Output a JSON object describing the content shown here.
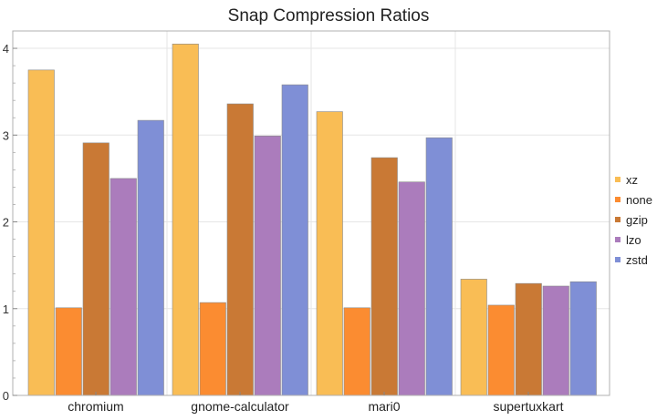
{
  "chart_data": {
    "type": "bar",
    "title": "Snap Compression Ratios",
    "xlabel": "",
    "ylabel": "",
    "categories": [
      "chromium",
      "gnome-calculator",
      "mari0",
      "supertuxkart"
    ],
    "series": [
      {
        "name": "xz",
        "color": "#f9bd55",
        "values": [
          3.75,
          4.05,
          3.27,
          1.34
        ]
      },
      {
        "name": "none",
        "color": "#fb8c31",
        "values": [
          1.01,
          1.07,
          1.01,
          1.04
        ]
      },
      {
        "name": "gzip",
        "color": "#c97935",
        "values": [
          2.91,
          3.36,
          2.74,
          1.29
        ]
      },
      {
        "name": "lzo",
        "color": "#ab7cbc",
        "values": [
          2.5,
          2.99,
          2.46,
          1.26
        ]
      },
      {
        "name": "zstd",
        "color": "#7f8fd6",
        "values": [
          3.17,
          3.58,
          2.97,
          1.31
        ]
      }
    ],
    "ylim": [
      0,
      4.2
    ],
    "yticks": [
      0,
      1,
      2,
      3,
      4
    ],
    "grid": true,
    "legend_position": "right"
  }
}
